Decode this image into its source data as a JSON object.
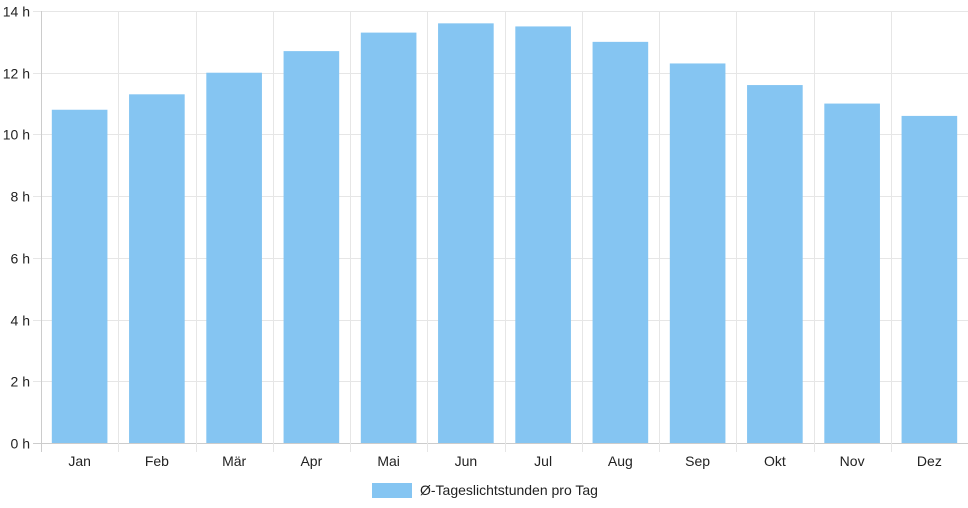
{
  "chart_data": {
    "type": "bar",
    "categories": [
      "Jan",
      "Feb",
      "Mär",
      "Apr",
      "Mai",
      "Jun",
      "Jul",
      "Aug",
      "Sep",
      "Okt",
      "Nov",
      "Dez"
    ],
    "series": [
      {
        "name": "Ø-Tageslichtstunden pro Tag",
        "values": [
          10.8,
          11.3,
          12.0,
          12.7,
          13.3,
          13.6,
          13.5,
          13.0,
          12.3,
          11.6,
          11.0,
          10.6
        ]
      }
    ],
    "y_ticks": [
      "0 h",
      "2 h",
      "4 h",
      "6 h",
      "8 h",
      "10 h",
      "12 h",
      "14 h"
    ],
    "ylim": [
      0,
      14
    ],
    "grid": true,
    "legend_position": "bottom",
    "colors": {
      "bar": "#85c5f2",
      "grid": "#e6e6e6",
      "axis": "#cccccc",
      "text": "#222222"
    }
  }
}
